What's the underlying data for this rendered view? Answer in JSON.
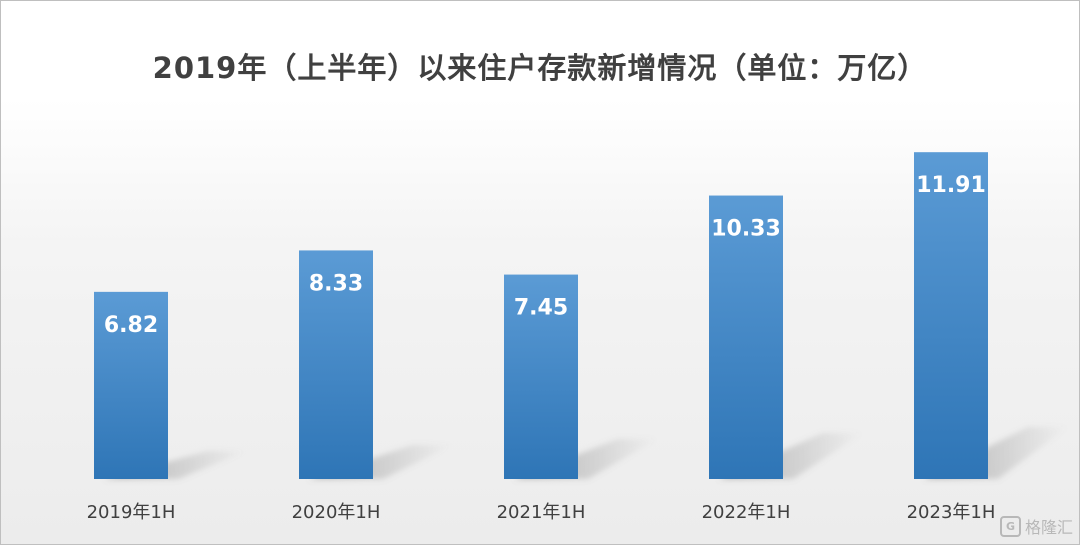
{
  "chart_data": {
    "type": "bar",
    "title": "2019年（上半年）以来住户存款新增情况（单位：万亿）",
    "categories": [
      "2019年1H",
      "2020年1H",
      "2021年1H",
      "2022年1H",
      "2023年1H"
    ],
    "values": [
      6.82,
      8.33,
      7.45,
      10.33,
      11.91
    ],
    "value_labels": [
      "6.82",
      "8.33",
      "7.45",
      "10.33",
      "11.91"
    ],
    "xlabel": "",
    "ylabel": "",
    "ylim": [
      0,
      12.5
    ],
    "grid": false,
    "legend": "none",
    "bar_color_top": "#5B9BD5",
    "bar_color_bottom": "#2E75B6",
    "label_color": "#ffffff",
    "shadow_color": "#8c8c8c"
  },
  "watermark": {
    "logo_glyph": "G",
    "text": "格隆汇"
  }
}
